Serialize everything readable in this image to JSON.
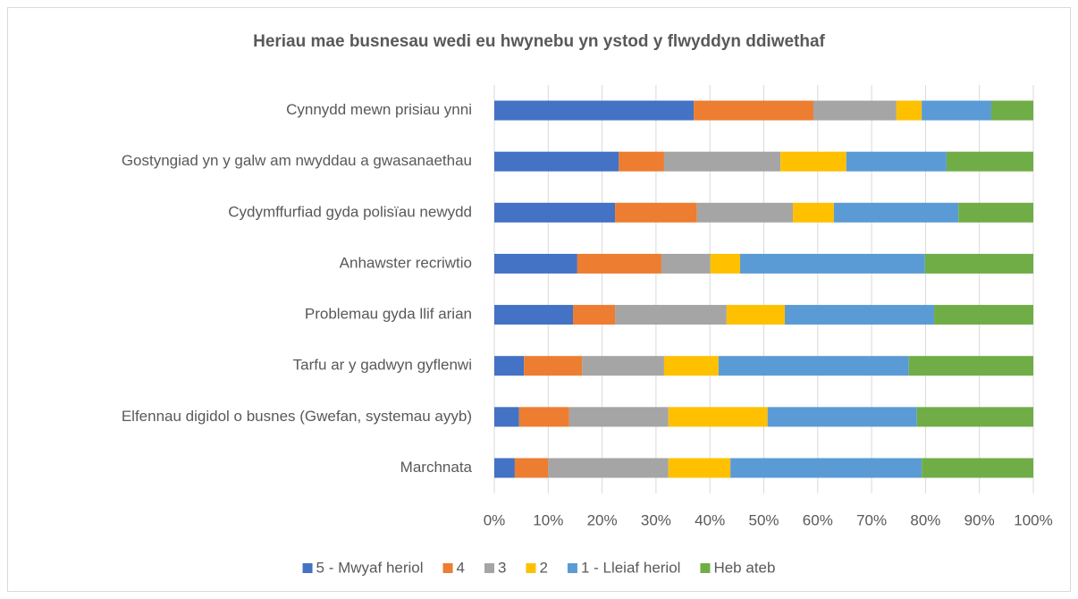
{
  "chart_data": {
    "type": "stacked_bar_horizontal",
    "title": "Heriau mae busnesau wedi eu hwynebu yn ystod y flwyddyn ddiwethaf",
    "categories": [
      "Cynnydd mewn prisiau ynni",
      "Gostyngiad yn y galw am nwyddau a gwasanaethau",
      "Cydymffurfiad gyda polisïau newydd",
      "Anhawster recriwtio",
      "Problemau gyda llif arian",
      "Tarfu ar y gadwyn gyflenwi",
      "Elfennau digidol o busnes (Gwefan, systemau ayyb)",
      "Marchnata"
    ],
    "series": [
      {
        "name": "5 - Mwyaf heriol",
        "color": "#4472c4",
        "values": [
          37.0,
          23.1,
          22.4,
          15.4,
          14.6,
          5.5,
          4.6,
          3.8
        ]
      },
      {
        "name": "4",
        "color": "#ed7d31",
        "values": [
          22.2,
          8.4,
          15.2,
          15.6,
          7.8,
          10.8,
          9.3,
          6.2
        ]
      },
      {
        "name": "3",
        "color": "#a5a5a5",
        "values": [
          15.4,
          21.6,
          17.8,
          9.1,
          20.7,
          15.2,
          18.4,
          22.3
        ]
      },
      {
        "name": "2",
        "color": "#ffc000",
        "values": [
          4.7,
          12.2,
          7.6,
          5.5,
          10.8,
          10.1,
          18.4,
          11.5
        ]
      },
      {
        "name": "1 - Lleiaf heriol",
        "color": "#5b9bd5",
        "values": [
          12.9,
          18.6,
          23.1,
          34.3,
          27.7,
          35.3,
          27.7,
          35.5
        ]
      },
      {
        "name": "Heb ateb",
        "color": "#70ad47",
        "values": [
          7.8,
          16.1,
          13.9,
          20.1,
          18.4,
          23.1,
          21.6,
          20.7
        ]
      }
    ],
    "xlim": [
      0,
      100
    ],
    "xticks": [
      {
        "value": 0,
        "label": "0%"
      },
      {
        "value": 10,
        "label": "10%"
      },
      {
        "value": 20,
        "label": "20%"
      },
      {
        "value": 30,
        "label": "30%"
      },
      {
        "value": 40,
        "label": "40%"
      },
      {
        "value": 50,
        "label": "50%"
      },
      {
        "value": 60,
        "label": "60%"
      },
      {
        "value": 70,
        "label": "70%"
      },
      {
        "value": 80,
        "label": "80%"
      },
      {
        "value": 90,
        "label": "90%"
      },
      {
        "value": 100,
        "label": "100%"
      }
    ],
    "grid": true,
    "legend": "bottom"
  }
}
